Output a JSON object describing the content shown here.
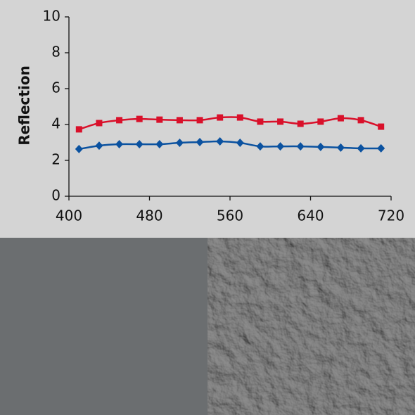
{
  "chart_data": {
    "type": "line",
    "y_label": "Reflection",
    "x": [
      410,
      430,
      450,
      470,
      490,
      510,
      530,
      550,
      570,
      590,
      610,
      630,
      650,
      670,
      690,
      710
    ],
    "series": [
      {
        "color": "#d9102a",
        "marker": "square",
        "values": [
          3.73,
          4.08,
          4.24,
          4.31,
          4.27,
          4.24,
          4.24,
          4.39,
          4.39,
          4.16,
          4.16,
          4.04,
          4.16,
          4.35,
          4.24,
          3.88
        ]
      },
      {
        "color": "#0b52a0",
        "marker": "diamond",
        "values": [
          2.63,
          2.82,
          2.9,
          2.9,
          2.9,
          2.98,
          3.02,
          3.06,
          2.98,
          2.78,
          2.78,
          2.78,
          2.75,
          2.71,
          2.67,
          2.67
        ]
      }
    ],
    "xlim": [
      400,
      720
    ],
    "xticks": [
      400,
      480,
      560,
      640,
      720
    ],
    "ylim": [
      0,
      10
    ],
    "yticks": [
      0,
      2,
      4,
      6,
      8,
      10
    ],
    "grid": false
  }
}
